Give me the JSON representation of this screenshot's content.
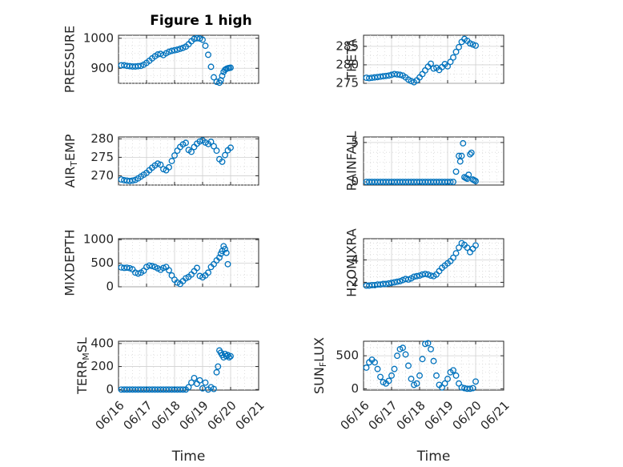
{
  "title": "Figure 1 high",
  "colors": {
    "marker": "#0072bd",
    "axes": "#262626",
    "grid": "#d0d0d0"
  },
  "chart_data": [
    {
      "type": "scatter",
      "ylabel": "PRESSURE",
      "title": "Figure 1 high",
      "xlim": [
        0,
        5
      ],
      "ylim": [
        850,
        1010
      ],
      "yticks": [
        900,
        1000
      ],
      "yminor": 25,
      "x": [
        0.1,
        0.2,
        0.3,
        0.4,
        0.5,
        0.6,
        0.7,
        0.8,
        0.9,
        1.0,
        1.1,
        1.2,
        1.3,
        1.4,
        1.5,
        1.6,
        1.7,
        1.8,
        1.9,
        2.0,
        2.1,
        2.2,
        2.3,
        2.4,
        2.5,
        2.6,
        2.7,
        2.8,
        2.9,
        3.0,
        3.1,
        3.2,
        3.3,
        3.4,
        3.5,
        3.6,
        3.65,
        3.7,
        3.75,
        3.8,
        3.85,
        3.9,
        3.95,
        4.0
      ],
      "y": [
        910,
        910,
        908,
        907,
        906,
        906,
        907,
        908,
        912,
        918,
        925,
        933,
        940,
        946,
        948,
        944,
        950,
        955,
        958,
        960,
        962,
        965,
        968,
        972,
        980,
        990,
        998,
        1000,
        999,
        995,
        975,
        945,
        905,
        870,
        855,
        852,
        860,
        875,
        888,
        895,
        898,
        900,
        901,
        902
      ]
    },
    {
      "type": "scatter",
      "ylabel": "THETA",
      "xlim": [
        0,
        5
      ],
      "ylim": [
        275,
        288
      ],
      "yticks": [
        275,
        280,
        285
      ],
      "yminor": 2.5,
      "x": [
        0.1,
        0.2,
        0.3,
        0.4,
        0.5,
        0.6,
        0.7,
        0.8,
        0.9,
        1.0,
        1.1,
        1.2,
        1.3,
        1.4,
        1.5,
        1.6,
        1.7,
        1.8,
        1.9,
        2.0,
        2.1,
        2.2,
        2.3,
        2.4,
        2.5,
        2.6,
        2.7,
        2.8,
        2.9,
        3.0,
        3.1,
        3.2,
        3.3,
        3.4,
        3.5,
        3.6,
        3.7,
        3.8,
        3.9,
        4.0
      ],
      "y": [
        276.5,
        276.4,
        276.5,
        276.6,
        276.7,
        276.8,
        276.9,
        277.0,
        277.1,
        277.3,
        277.5,
        277.4,
        277.3,
        277.1,
        276.6,
        276.0,
        275.6,
        275.3,
        275.8,
        276.6,
        277.5,
        278.5,
        279.5,
        280.3,
        279.0,
        279.2,
        278.6,
        279.4,
        280.2,
        279.6,
        280.8,
        282.0,
        283.5,
        284.8,
        286.2,
        287.0,
        286.5,
        285.8,
        285.5,
        285.2
      ]
    },
    {
      "type": "scatter",
      "ylabel": "AIR_TEMP",
      "xlim": [
        0,
        5
      ],
      "ylim": [
        267.5,
        280.5
      ],
      "yticks": [
        270,
        275,
        280
      ],
      "yminor": 2.5,
      "x": [
        0.1,
        0.2,
        0.3,
        0.4,
        0.5,
        0.6,
        0.7,
        0.8,
        0.9,
        1.0,
        1.1,
        1.2,
        1.3,
        1.4,
        1.5,
        1.6,
        1.7,
        1.8,
        1.9,
        2.0,
        2.1,
        2.2,
        2.3,
        2.4,
        2.5,
        2.6,
        2.7,
        2.8,
        2.9,
        3.0,
        3.1,
        3.2,
        3.3,
        3.4,
        3.5,
        3.6,
        3.7,
        3.8,
        3.9,
        4.0
      ],
      "y": [
        269.0,
        268.8,
        268.7,
        268.6,
        268.7,
        268.9,
        269.3,
        269.8,
        270.3,
        270.8,
        271.5,
        272.2,
        272.8,
        273.3,
        273.0,
        271.8,
        271.5,
        272.3,
        274.0,
        275.5,
        276.8,
        277.8,
        278.5,
        278.9,
        277.0,
        276.5,
        277.8,
        278.7,
        279.3,
        279.6,
        279.0,
        278.6,
        279.2,
        278.0,
        276.8,
        274.5,
        273.8,
        275.6,
        276.9,
        277.6
      ]
    },
    {
      "type": "scatter",
      "ylabel": "RAINFALL",
      "xlim": [
        0,
        5
      ],
      "ylim": [
        -0.4,
        5.7
      ],
      "yticks": [
        0,
        5
      ],
      "yminor": 1.25,
      "x": [
        0.1,
        0.2,
        0.3,
        0.4,
        0.5,
        0.6,
        0.7,
        0.8,
        0.9,
        1.0,
        1.1,
        1.2,
        1.3,
        1.4,
        1.5,
        1.6,
        1.7,
        1.8,
        1.9,
        2.0,
        2.1,
        2.2,
        2.3,
        2.4,
        2.5,
        2.6,
        2.7,
        2.8,
        2.9,
        3.0,
        3.1,
        3.2,
        3.3,
        3.4,
        3.45,
        3.5,
        3.55,
        3.6,
        3.65,
        3.7,
        3.75,
        3.8,
        3.85,
        3.9,
        3.95,
        4.0
      ],
      "y": [
        0,
        0,
        0,
        0,
        0,
        0,
        0,
        0,
        0,
        0,
        0,
        0,
        0,
        0,
        0,
        0,
        0,
        0,
        0,
        0,
        0,
        0,
        0,
        0,
        0,
        0,
        0,
        0,
        0,
        0,
        0,
        0,
        1.3,
        3.3,
        2.6,
        3.3,
        4.9,
        0.6,
        0.5,
        0.4,
        0.9,
        3.5,
        3.7,
        0.3,
        0.2,
        0.1
      ]
    },
    {
      "type": "scatter",
      "ylabel": "MIXDEPTH",
      "xlim": [
        0,
        5
      ],
      "ylim": [
        0,
        1020
      ],
      "yticks": [
        0,
        500,
        1000
      ],
      "yminor": 250,
      "x": [
        0.1,
        0.2,
        0.3,
        0.4,
        0.5,
        0.6,
        0.7,
        0.8,
        0.9,
        1.0,
        1.1,
        1.2,
        1.3,
        1.4,
        1.5,
        1.6,
        1.7,
        1.8,
        1.9,
        2.0,
        2.1,
        2.2,
        2.3,
        2.4,
        2.5,
        2.6,
        2.7,
        2.8,
        2.9,
        3.0,
        3.1,
        3.2,
        3.3,
        3.4,
        3.5,
        3.6,
        3.65,
        3.7,
        3.75,
        3.8,
        3.85,
        3.9
      ],
      "y": [
        410,
        400,
        405,
        395,
        370,
        300,
        280,
        300,
        340,
        420,
        450,
        440,
        420,
        390,
        360,
        400,
        420,
        350,
        240,
        150,
        90,
        60,
        120,
        180,
        210,
        260,
        330,
        400,
        230,
        200,
        240,
        300,
        420,
        480,
        560,
        620,
        700,
        760,
        860,
        800,
        720,
        480
      ]
    },
    {
      "type": "scatter",
      "ylabel": "H2OMIXRA",
      "xlim": [
        0,
        5
      ],
      "ylim": [
        1.6,
        5.9
      ],
      "yticks": [
        2,
        4
      ],
      "yminor": 0.5,
      "x": [
        0.1,
        0.2,
        0.3,
        0.4,
        0.5,
        0.6,
        0.7,
        0.8,
        0.9,
        1.0,
        1.1,
        1.2,
        1.3,
        1.4,
        1.5,
        1.6,
        1.7,
        1.8,
        1.9,
        2.0,
        2.1,
        2.2,
        2.3,
        2.4,
        2.5,
        2.6,
        2.7,
        2.8,
        2.9,
        3.0,
        3.1,
        3.2,
        3.3,
        3.4,
        3.5,
        3.6,
        3.7,
        3.8,
        3.9,
        4.0
      ],
      "y": [
        1.7,
        1.7,
        1.75,
        1.75,
        1.8,
        1.8,
        1.85,
        1.85,
        1.9,
        1.95,
        2.0,
        2.05,
        2.1,
        2.2,
        2.3,
        2.25,
        2.35,
        2.5,
        2.55,
        2.6,
        2.7,
        2.75,
        2.7,
        2.6,
        2.55,
        2.7,
        3.0,
        3.3,
        3.5,
        3.7,
        3.9,
        4.2,
        4.6,
        5.1,
        5.5,
        5.35,
        5.1,
        4.7,
        5.0,
        5.3
      ]
    },
    {
      "type": "scatter",
      "ylabel": "TERR_MSL",
      "xlim": [
        0,
        5
      ],
      "ylim": [
        -5,
        420
      ],
      "yticks": [
        0,
        200,
        400
      ],
      "yminor": 100,
      "x": [
        0.1,
        0.2,
        0.3,
        0.4,
        0.5,
        0.6,
        0.7,
        0.8,
        0.9,
        1.0,
        1.1,
        1.2,
        1.3,
        1.4,
        1.5,
        1.6,
        1.7,
        1.8,
        1.9,
        2.0,
        2.1,
        2.2,
        2.3,
        2.4,
        2.5,
        2.6,
        2.7,
        2.8,
        2.9,
        3.0,
        3.1,
        3.2,
        3.3,
        3.4,
        3.5,
        3.55,
        3.6,
        3.65,
        3.7,
        3.75,
        3.8,
        3.85,
        3.9,
        3.95,
        4.0
      ],
      "y": [
        0,
        0,
        0,
        0,
        0,
        0,
        0,
        0,
        0,
        0,
        0,
        0,
        0,
        0,
        0,
        0,
        0,
        0,
        0,
        0,
        0,
        0,
        0,
        0,
        20,
        60,
        100,
        50,
        80,
        10,
        60,
        0,
        20,
        5,
        150,
        200,
        340,
        320,
        300,
        280,
        310,
        290,
        300,
        280,
        290
      ]
    },
    {
      "type": "scatter",
      "ylabel": "SUN_FLUX",
      "xlim": [
        0,
        5
      ],
      "ylim": [
        -20,
        720
      ],
      "yticks": [
        0,
        500
      ],
      "yminor": 125,
      "x": [
        0.1,
        0.2,
        0.3,
        0.4,
        0.5,
        0.6,
        0.7,
        0.8,
        0.9,
        1.0,
        1.1,
        1.2,
        1.3,
        1.4,
        1.5,
        1.6,
        1.7,
        1.8,
        1.9,
        2.0,
        2.1,
        2.2,
        2.3,
        2.4,
        2.5,
        2.6,
        2.7,
        2.8,
        2.9,
        3.0,
        3.1,
        3.2,
        3.3,
        3.4,
        3.5,
        3.6,
        3.7,
        3.8,
        3.9,
        4.0
      ],
      "y": [
        320,
        400,
        440,
        400,
        300,
        180,
        100,
        80,
        120,
        200,
        300,
        500,
        600,
        620,
        520,
        350,
        150,
        60,
        80,
        200,
        450,
        680,
        690,
        600,
        420,
        200,
        60,
        20,
        80,
        150,
        250,
        280,
        200,
        80,
        20,
        10,
        0,
        0,
        10,
        110
      ]
    }
  ],
  "xaxis": {
    "tick_labels": [
      "06/16",
      "06/17",
      "06/18",
      "06/19",
      "06/20",
      "06/21"
    ],
    "label": "Time"
  }
}
